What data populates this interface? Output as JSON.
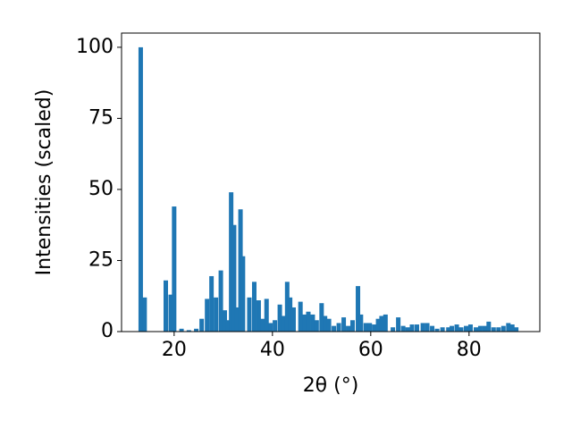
{
  "chart_data": {
    "type": "bar",
    "xlabel": "2θ (°)",
    "ylabel": "Intensities (scaled)",
    "color": "#1f77b4",
    "x": [
      13.2,
      14,
      18.3,
      19.3,
      20,
      21.5,
      23,
      24.5,
      25.6,
      26.7,
      27.6,
      28.5,
      29.5,
      30.3,
      31,
      31.6,
      32.2,
      32.8,
      33.5,
      34,
      35.3,
      36.3,
      37.2,
      38,
      38.8,
      39.6,
      40.5,
      41.5,
      42.3,
      43,
      43.6,
      44.3,
      45.7,
      46.5,
      47.3,
      48.2,
      49,
      50,
      50.7,
      51.5,
      52.5,
      53.5,
      54.5,
      55.4,
      56.3,
      57.4,
      58,
      59,
      59.8,
      60.7,
      61.5,
      62.2,
      63,
      64.5,
      65.6,
      66.6,
      67.5,
      68.4,
      69.4,
      70.6,
      71.5,
      72.5,
      73.5,
      74.6,
      75.8,
      76.5,
      77.5,
      78.4,
      79.4,
      80.3,
      81.4,
      82.3,
      83.2,
      84,
      85,
      86,
      87,
      88,
      88.8,
      89.6
    ],
    "values": [
      100,
      12,
      18,
      13,
      44,
      1,
      0.5,
      1,
      4.5,
      11.5,
      19.5,
      12,
      21.5,
      7.5,
      4,
      49,
      37.5,
      8.5,
      43,
      26.5,
      12,
      17.5,
      11,
      4.5,
      11.5,
      3,
      4,
      9.5,
      5.5,
      17.5,
      12,
      8.5,
      10.5,
      6,
      7,
      6,
      4,
      10,
      5.5,
      4.5,
      2,
      3,
      5,
      2,
      4,
      16,
      6,
      3,
      3,
      2.5,
      4.5,
      5.5,
      6,
      1.5,
      5,
      2,
      1.5,
      2.5,
      2.5,
      3,
      3,
      2,
      1,
      1.5,
      1.5,
      2,
      2.5,
      1.5,
      2,
      2.5,
      1.5,
      2,
      2,
      3.5,
      1.5,
      1.5,
      2,
      3,
      2.5,
      1.5
    ],
    "xlim": [
      9.3,
      94.4
    ],
    "ylim": [
      0,
      105
    ],
    "xticks": [
      20,
      40,
      60,
      80
    ],
    "yticks": [
      0,
      25,
      50,
      75,
      100
    ]
  }
}
